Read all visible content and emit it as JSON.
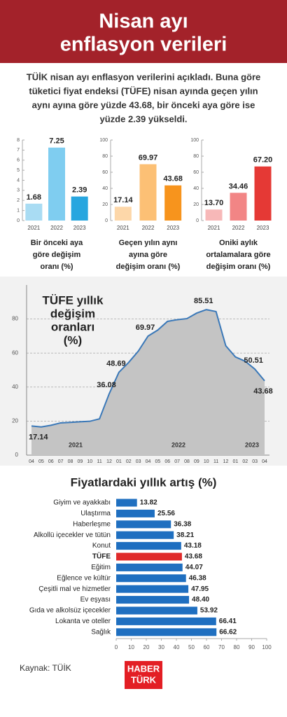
{
  "header": {
    "title": [
      "Nisan ayı",
      "enflasyon verileri"
    ]
  },
  "intro": [
    "TÜİK nisan ayı enflasyon verilerini açıkladı. Buna göre",
    "tüketici fiyat endeksi (TÜFE) nisan ayında geçen yılın",
    "aynı ayına göre yüzde 43.68, bir önceki aya göre ise",
    "yüzde 2.39 yükseldi."
  ],
  "chart_data": [
    {
      "type": "bar",
      "categories": [
        "2021",
        "2022",
        "2023"
      ],
      "values": [
        1.68,
        7.25,
        2.39
      ],
      "value_labels": [
        "1.68",
        "7.25",
        "2.39"
      ],
      "colors": [
        "#a9dcf3",
        "#7fcdf0",
        "#27a6df"
      ],
      "ylim": [
        0,
        8
      ],
      "yticks": [
        0,
        1,
        2,
        3,
        4,
        5,
        6,
        7,
        8
      ],
      "caption": [
        "Bir önceki aya",
        "göre değişim",
        "oranı (%)"
      ]
    },
    {
      "type": "bar",
      "categories": [
        "2021",
        "2022",
        "2023"
      ],
      "values": [
        17.14,
        69.97,
        43.68
      ],
      "value_labels": [
        "17.14",
        "69.97",
        "43.68"
      ],
      "colors": [
        "#fdd7a9",
        "#fcc075",
        "#f7941d"
      ],
      "ylim": [
        0,
        100
      ],
      "yticks": [
        0,
        20,
        40,
        60,
        80,
        100
      ],
      "caption": [
        "Geçen yılın aynı",
        "ayına göre",
        "değişim oranı (%)"
      ]
    },
    {
      "type": "bar",
      "categories": [
        "2021",
        "2022",
        "2023"
      ],
      "values": [
        13.7,
        34.46,
        67.2
      ],
      "value_labels": [
        "13.70",
        "34.46",
        "67.20"
      ],
      "colors": [
        "#f7b8b8",
        "#f28585",
        "#e53935"
      ],
      "ylim": [
        0,
        100
      ],
      "yticks": [
        0,
        20,
        40,
        60,
        80,
        100
      ],
      "caption": [
        "Oniki aylık",
        "ortalamalara göre",
        "değişim oranı (%)"
      ]
    },
    {
      "type": "line",
      "title": [
        "TÜFE yıllık",
        "değişim",
        "oranları",
        "(%)"
      ],
      "categories": [
        "04",
        "05",
        "06",
        "07",
        "08",
        "09",
        "10",
        "11",
        "12",
        "01",
        "02",
        "03",
        "04",
        "05",
        "06",
        "07",
        "08",
        "09",
        "10",
        "11",
        "12",
        "01",
        "02",
        "03",
        "04"
      ],
      "values": [
        17.14,
        16.59,
        17.53,
        18.95,
        19.25,
        19.58,
        19.89,
        21.31,
        36.08,
        48.69,
        54.44,
        61.14,
        69.97,
        73.5,
        78.62,
        79.6,
        80.21,
        83.45,
        85.51,
        84.39,
        64.27,
        57.68,
        55.18,
        50.51,
        43.68
      ],
      "value_labels": [
        "17.14",
        null,
        null,
        null,
        null,
        null,
        null,
        null,
        "36.08",
        "48.69",
        null,
        null,
        "69.97",
        null,
        null,
        null,
        null,
        null,
        "85.51",
        null,
        null,
        null,
        null,
        "50.51",
        "43.68"
      ],
      "year_labels": [
        "2021",
        "2022",
        "2023"
      ],
      "ylim": [
        0,
        100
      ],
      "yticks": [
        0,
        20,
        40,
        60,
        80
      ],
      "grid": true,
      "color": "#3a78b8",
      "fill": "#c4c4c4"
    },
    {
      "type": "hbar",
      "title": "Fiyatlardaki yıllık artış (%)",
      "categories": [
        "Giyim ve ayakkabı",
        "Ulaştırma",
        "Haberleşme",
        "Alkollü içecekler ve tütün",
        "Konut",
        "TÜFE",
        "Eğitim",
        "Eğlence ve kültür",
        "Çeşitli mal ve hizmetler",
        "Ev eşyası",
        "Gıda ve alkolsüz içecekler",
        "Lokanta ve oteller",
        "Sağlık"
      ],
      "values": [
        13.82,
        25.56,
        36.38,
        38.21,
        43.18,
        43.68,
        44.07,
        46.38,
        47.95,
        48.4,
        53.92,
        66.41,
        66.62
      ],
      "value_labels": [
        "13.82",
        "25.56",
        "36.38",
        "38.21",
        "43.18",
        "43.68",
        "44.07",
        "46.38",
        "47.95",
        "48.40",
        "53.92",
        "66.41",
        "66.62"
      ],
      "colors": [
        "#1f6fc0",
        "#1f6fc0",
        "#1f6fc0",
        "#1f6fc0",
        "#1f6fc0",
        "#e02b2b",
        "#1f6fc0",
        "#1f6fc0",
        "#1f6fc0",
        "#1f6fc0",
        "#1f6fc0",
        "#1f6fc0",
        "#1f6fc0"
      ],
      "highlight_color": "#e02b2b",
      "xlim": [
        0,
        100
      ],
      "xticks": [
        0,
        10,
        20,
        30,
        40,
        50,
        60,
        70,
        80,
        90,
        100
      ]
    }
  ],
  "footer": {
    "source": "Kaynak:  TÜİK",
    "logo": [
      "HABER",
      "TÜRK"
    ]
  }
}
